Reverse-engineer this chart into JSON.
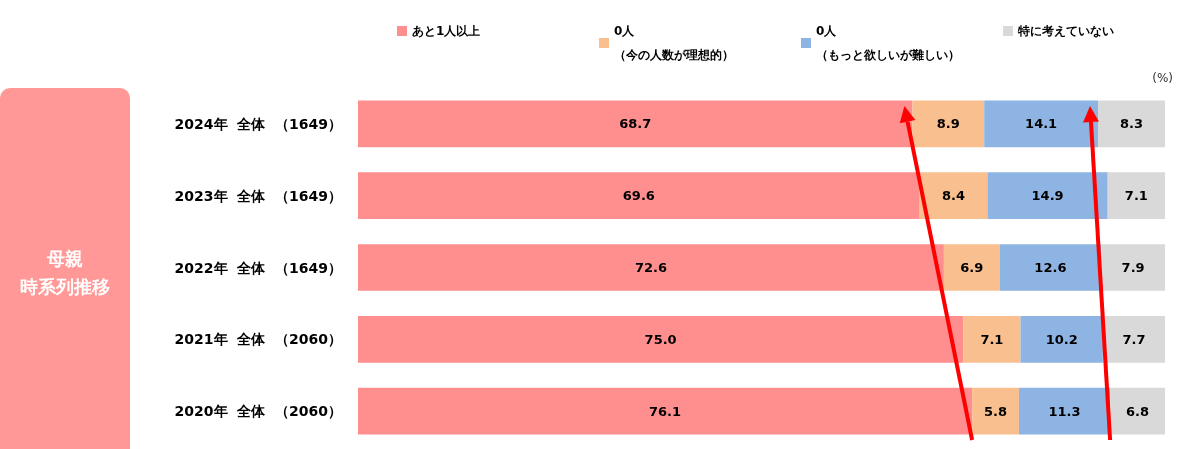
{
  "chart_data": {
    "type": "bar",
    "orientation": "horizontal",
    "stacked": true,
    "tick_labels": "y",
    "grid": false,
    "legend": "top",
    "categories": [
      "2024年  全体  （1649）",
      "2023年  全体  （1649）",
      "2022年  全体  （1649）",
      "2021年  全体  （2060）",
      "2020年  全体  （2060）"
    ],
    "xlim": [
      0,
      100
    ],
    "series": [
      {
        "name": "あと1人以上",
        "color": "#ff8f8f",
        "values": [
          68.7,
          69.6,
          72.6,
          75.0,
          76.1
        ],
        "value_labels": [
          "68.7",
          "69.6",
          "72.6",
          "75.0",
          "76.1"
        ]
      },
      {
        "name": "0人（今の人数が理想的）",
        "color": "#f9bf8f",
        "values": [
          8.9,
          8.4,
          6.9,
          7.1,
          5.8
        ],
        "value_labels": [
          "8.9",
          "8.4",
          "6.9",
          "7.1",
          "5.8"
        ]
      },
      {
        "name": "0人（もっと欲しいが難しい）",
        "color": "#8eb4e3",
        "values": [
          14.1,
          14.9,
          12.6,
          10.2,
          11.3
        ],
        "value_labels": [
          "14.1",
          "14.9",
          "12.6",
          "10.2",
          "11.3"
        ]
      },
      {
        "name": "特に考えていない",
        "color": "#d9d9d9",
        "values": [
          8.3,
          7.1,
          7.9,
          7.7,
          6.8
        ],
        "value_labels": [
          "8.3",
          "7.1",
          "7.9",
          "7.7",
          "6.8"
        ]
      }
    ],
    "annotations": [
      "母親",
      "時系列推移",
      "(%)"
    ]
  }
}
